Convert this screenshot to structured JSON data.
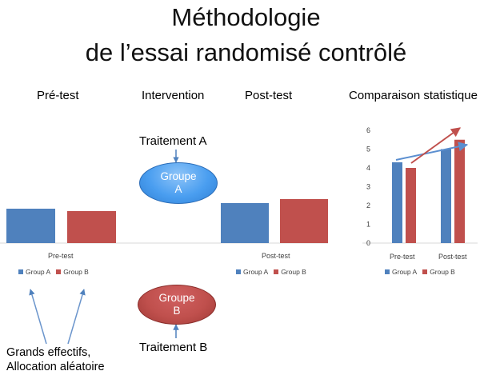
{
  "title": {
    "line1": "Méthodologie",
    "line2": "de l’essai randomisé contrôlé"
  },
  "columns": {
    "pretest": "Pré-test",
    "intervention": "Intervention",
    "posttest": "Post-test",
    "comparison": "Comparaison statistique"
  },
  "intervention": {
    "treatment_a": "Traitement A",
    "treatment_b": "Traitement B",
    "group_a_line1": "Groupe",
    "group_a_line2": "A",
    "group_b_line1": "Groupe",
    "group_b_line2": "B"
  },
  "note": {
    "line1": "Grands effectifs,",
    "line2": "Allocation aléatoire"
  },
  "colors": {
    "group_a": "#4f81bd",
    "group_b": "#c0504d",
    "arrow_blue": "#5b8fd0",
    "arrow_red": "#c0504d"
  },
  "chart_data": [
    {
      "type": "bar",
      "categories": [
        "Pre-test"
      ],
      "series": [
        {
          "name": "Group A",
          "values": [
            4.3
          ]
        },
        {
          "name": "Group B",
          "values": [
            4.0
          ]
        }
      ],
      "legend": "bottom"
    },
    {
      "type": "bar",
      "categories": [
        "Post-test"
      ],
      "series": [
        {
          "name": "Group A",
          "values": [
            5.0
          ]
        },
        {
          "name": "Group B",
          "values": [
            5.5
          ]
        }
      ],
      "legend": "bottom"
    },
    {
      "type": "bar",
      "categories": [
        "Pre-test",
        "Post-test"
      ],
      "series": [
        {
          "name": "Group A",
          "values": [
            4.3,
            5.0
          ]
        },
        {
          "name": "Group B",
          "values": [
            4.0,
            5.5
          ]
        }
      ],
      "yticks": [
        "0",
        "1",
        "2",
        "3",
        "4",
        "5",
        "6"
      ],
      "ylim": [
        0,
        6
      ],
      "legend": "bottom"
    }
  ]
}
